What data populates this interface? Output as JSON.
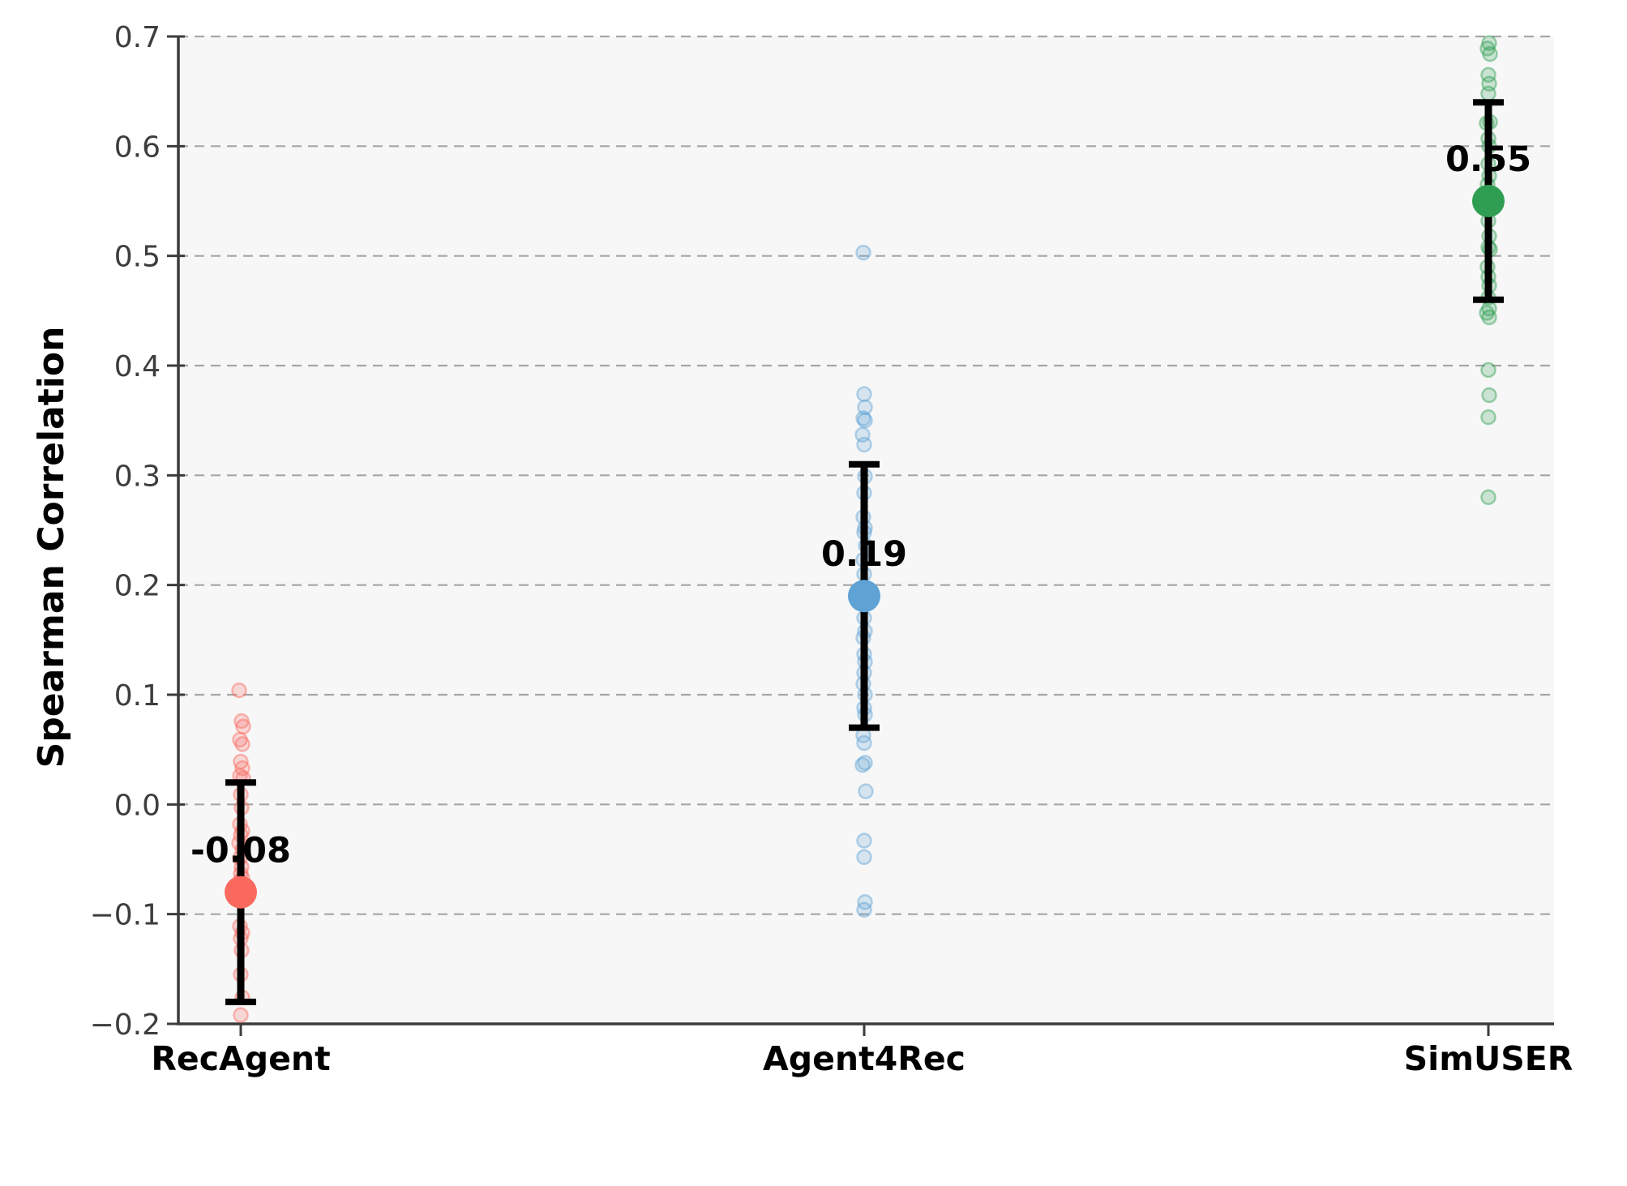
{
  "chart_data": {
    "type": "scatter",
    "title": "",
    "xlabel": "",
    "ylabel": "Spearman Correlation",
    "ylim": [
      -0.2,
      0.7
    ],
    "yticks": [
      0.7,
      0.6,
      0.5,
      0.4,
      0.3,
      0.2,
      0.1,
      0.0,
      -0.1,
      -0.2
    ],
    "ytick_labels": [
      "0.7",
      "0.6",
      "0.5",
      "0.4",
      "0.3",
      "0.2",
      "0.1",
      "0.0",
      "−0.1",
      "−0.2"
    ],
    "categories": [
      "RecAgent",
      "Agent4Rec",
      "SimUSER"
    ],
    "grid": "horizontal-dashed",
    "legend": "none",
    "colors": {
      "grid": "#a6a6a6",
      "spine": "#3c3c3c",
      "tick_label": "#3d3d3d",
      "plot_background": "#f7f7f7",
      "error_bar": "#000000",
      "value_label": "#000000"
    },
    "series": [
      {
        "name": "RecAgent",
        "color": "#f9695e",
        "mean": -0.08,
        "mean_label": "-0.08",
        "err_low": -0.18,
        "err_high": 0.02,
        "points": [
          0.104,
          0.076,
          0.071,
          0.059,
          0.055,
          0.039,
          0.033,
          0.026,
          0.024,
          0.009,
          -0.003,
          -0.018,
          -0.024,
          -0.028,
          -0.035,
          -0.041,
          -0.049,
          -0.057,
          -0.063,
          -0.067,
          -0.07,
          -0.08,
          -0.086,
          -0.111,
          -0.117,
          -0.122,
          -0.133,
          -0.155,
          -0.176,
          -0.192
        ],
        "jitter": [
          -2,
          1,
          3,
          -1,
          2,
          0,
          2,
          -1,
          3,
          0,
          1,
          -1,
          2,
          0,
          -2,
          2,
          -1,
          1,
          0,
          2,
          -1,
          0,
          1,
          -1,
          2,
          0,
          1,
          0,
          2,
          0
        ]
      },
      {
        "name": "Agent4Rec",
        "color": "#5fa2d4",
        "mean": 0.19,
        "mean_label": "0.19",
        "err_low": 0.07,
        "err_high": 0.31,
        "points": [
          0.503,
          0.374,
          0.362,
          0.352,
          0.35,
          0.337,
          0.328,
          0.299,
          0.284,
          0.262,
          0.252,
          0.248,
          0.236,
          0.223,
          0.21,
          0.196,
          0.17,
          0.158,
          0.152,
          0.137,
          0.13,
          0.12,
          0.11,
          0.1,
          0.088,
          0.082,
          0.063,
          0.056,
          0.038,
          0.036,
          0.012,
          -0.033,
          -0.048,
          -0.089,
          -0.096
        ],
        "jitter": [
          -1,
          0,
          1,
          -1,
          1,
          -2,
          0,
          1,
          0,
          -1,
          1,
          0,
          2,
          -1,
          0,
          1,
          0,
          1,
          -1,
          0,
          1,
          0,
          -1,
          1,
          0,
          1,
          -1,
          0,
          1,
          -2,
          2,
          0,
          0,
          1,
          0
        ]
      },
      {
        "name": "SimUSER",
        "color": "#2f9e53",
        "mean": 0.55,
        "mean_label": "0.55",
        "err_low": 0.46,
        "err_high": 0.64,
        "points": [
          0.694,
          0.689,
          0.684,
          0.665,
          0.657,
          0.648,
          0.622,
          0.621,
          0.607,
          0.6,
          0.584,
          0.573,
          0.565,
          0.532,
          0.518,
          0.508,
          0.506,
          0.49,
          0.481,
          0.473,
          0.462,
          0.452,
          0.448,
          0.444,
          0.396,
          0.373,
          0.353,
          0.28
        ],
        "jitter": [
          1,
          -1,
          2,
          0,
          1,
          0,
          2,
          -2,
          0,
          1,
          0,
          1,
          -1,
          0,
          1,
          0,
          2,
          -1,
          0,
          1,
          0,
          1,
          -2,
          1,
          0,
          1,
          0,
          0
        ]
      }
    ]
  }
}
